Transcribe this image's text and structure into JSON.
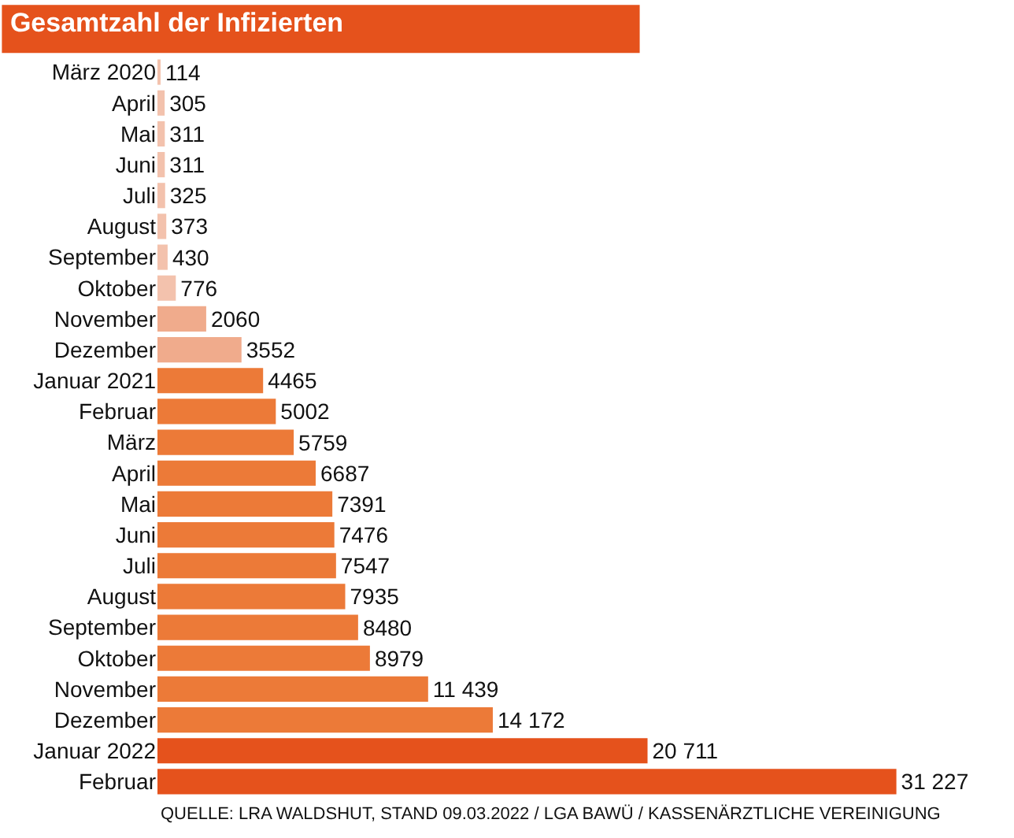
{
  "chart_data": {
    "type": "bar",
    "orientation": "horizontal",
    "title": "Gesamtzahl der Infizierten",
    "categories": [
      "März 2020",
      "April",
      "Mai",
      "Juni",
      "Juli",
      "August",
      "September",
      "Oktober",
      "November",
      "Dezember",
      "Januar 2021",
      "Februar",
      "März",
      "April",
      "Mai",
      "Juni",
      "Juli",
      "August",
      "September",
      "Oktober",
      "November",
      "Dezember",
      "Januar 2022",
      "Februar"
    ],
    "values": [
      114,
      305,
      311,
      311,
      325,
      373,
      430,
      776,
      2060,
      3552,
      4465,
      5002,
      5759,
      6687,
      7391,
      7476,
      7547,
      7935,
      8480,
      8979,
      11439,
      14172,
      20711,
      31227
    ],
    "value_labels": [
      "114",
      "305",
      "311",
      "311",
      "325",
      "373",
      "430",
      "776",
      "2060",
      "3552",
      "4465",
      "5002",
      "5759",
      "6687",
      "7391",
      "7476",
      "7547",
      "7935",
      "8480",
      "8979",
      "11 439",
      "14 172",
      "20 711",
      "31 227"
    ],
    "colors": [
      "#f3c2ad",
      "#f3c2ad",
      "#f3c2ad",
      "#f3c2ad",
      "#f3c2ad",
      "#f3c2ad",
      "#f3c2ad",
      "#f3c2ad",
      "#f0ab8c",
      "#f0ab8c",
      "#ec7a38",
      "#ec7a38",
      "#ec7a38",
      "#ec7a38",
      "#ec7a38",
      "#ec7a38",
      "#ec7a38",
      "#ec7a38",
      "#ec7a38",
      "#ec7a38",
      "#ec7a38",
      "#ec7a38",
      "#e5521c",
      "#e5521c"
    ],
    "tick_labels": "y",
    "legend": false,
    "annotations": [
      "QUELLE: LRA WALDSHUT, STAND 09.03.2022 / LGA BAWÜ / KASSENÄRZTLICHE VEREINIGUNG"
    ]
  }
}
